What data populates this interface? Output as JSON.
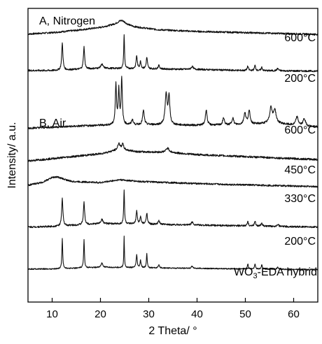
{
  "chart_data": {
    "type": "line",
    "xlabel": "2 Theta/ °",
    "ylabel": "Intensity/ a.u.",
    "xlim": [
      5,
      65
    ],
    "xticks": [
      10,
      20,
      30,
      40,
      50,
      60
    ],
    "yticks_shown": false,
    "panels": [
      {
        "label": "A, Nitrogen"
      },
      {
        "label": "B, Air"
      }
    ],
    "series": [
      {
        "name": "600°C",
        "panel": "A, Nitrogen",
        "offset": 9.35,
        "baseline": [
          [
            5,
            0.05
          ],
          [
            10,
            0.1
          ],
          [
            15,
            0.18
          ],
          [
            20,
            0.28
          ],
          [
            24,
            0.42
          ],
          [
            27,
            0.3
          ],
          [
            32,
            0.2
          ],
          [
            40,
            0.14
          ],
          [
            50,
            0.1
          ],
          [
            60,
            0.06
          ],
          [
            65,
            0.04
          ]
        ],
        "noise": 0.03,
        "peaks": [
          [
            24.5,
            0.12,
            1.8
          ]
        ]
      },
      {
        "name": "200°C",
        "panel": "A, Nitrogen",
        "offset": 8.0,
        "baseline": [
          [
            5,
            0.12
          ],
          [
            10,
            0.12
          ],
          [
            20,
            0.2
          ],
          [
            30,
            0.18
          ],
          [
            40,
            0.16
          ],
          [
            50,
            0.12
          ],
          [
            65,
            0.1
          ]
        ],
        "noise": 0.03,
        "peaks": [
          [
            12.1,
            0.95,
            0.3
          ],
          [
            16.6,
            0.78,
            0.3
          ],
          [
            20.3,
            0.15,
            0.5
          ],
          [
            24.9,
            1.2,
            0.2
          ],
          [
            27.5,
            0.45,
            0.3
          ],
          [
            28.3,
            0.25,
            0.3
          ],
          [
            29.6,
            0.4,
            0.3
          ],
          [
            32.1,
            0.12,
            0.4
          ],
          [
            39.0,
            0.1,
            0.5
          ],
          [
            50.5,
            0.15,
            0.3
          ],
          [
            52.0,
            0.18,
            0.3
          ],
          [
            53.4,
            0.12,
            0.3
          ],
          [
            56.7,
            0.08,
            0.4
          ]
        ]
      },
      {
        "name": "600°C",
        "panel": "B, Air",
        "offset": 6.0,
        "baseline": [
          [
            5,
            0.1
          ],
          [
            20,
            0.2
          ],
          [
            30,
            0.22
          ],
          [
            40,
            0.2
          ],
          [
            50,
            0.22
          ],
          [
            56,
            0.28
          ],
          [
            60,
            0.2
          ],
          [
            65,
            0.14
          ]
        ],
        "noise": 0.035,
        "peaks": [
          [
            23.2,
            1.4,
            0.3
          ],
          [
            23.8,
            1.2,
            0.3
          ],
          [
            24.4,
            1.6,
            0.3
          ],
          [
            26.6,
            0.18,
            0.4
          ],
          [
            28.9,
            0.5,
            0.4
          ],
          [
            33.6,
            1.05,
            0.5
          ],
          [
            34.2,
            0.95,
            0.4
          ],
          [
            41.9,
            0.55,
            0.4
          ],
          [
            45.5,
            0.25,
            0.4
          ],
          [
            47.4,
            0.25,
            0.4
          ],
          [
            49.9,
            0.4,
            0.5
          ],
          [
            50.8,
            0.45,
            0.5
          ],
          [
            55.3,
            0.55,
            0.6
          ],
          [
            56.1,
            0.45,
            0.6
          ],
          [
            60.7,
            0.3,
            0.6
          ],
          [
            62.2,
            0.25,
            0.6
          ]
        ]
      },
      {
        "name": "450°C",
        "panel": "B, Air",
        "offset": 4.95,
        "baseline": [
          [
            5,
            0.0
          ],
          [
            10,
            0.08
          ],
          [
            20,
            0.25
          ],
          [
            24,
            0.4
          ],
          [
            28,
            0.32
          ],
          [
            34,
            0.3
          ],
          [
            40,
            0.22
          ],
          [
            50,
            0.15
          ],
          [
            60,
            0.08
          ],
          [
            65,
            0.05
          ]
        ],
        "noise": 0.035,
        "peaks": [
          [
            23.8,
            0.22,
            0.5
          ],
          [
            24.6,
            0.2,
            0.5
          ],
          [
            33.9,
            0.15,
            0.8
          ]
        ]
      },
      {
        "name": "330°C",
        "panel": "B, Air",
        "offset": 4.05,
        "baseline": [
          [
            5,
            0.05
          ],
          [
            8,
            0.15
          ],
          [
            10,
            0.32
          ],
          [
            11,
            0.34
          ],
          [
            14,
            0.18
          ],
          [
            20,
            0.14
          ],
          [
            24,
            0.24
          ],
          [
            28,
            0.18
          ],
          [
            34,
            0.14
          ],
          [
            45,
            0.08
          ],
          [
            55,
            0.04
          ],
          [
            65,
            0.0
          ]
        ],
        "noise": 0.03,
        "peaks": []
      },
      {
        "name": "200°C",
        "panel": "B, Air",
        "offset": 2.55,
        "baseline": [
          [
            5,
            0.08
          ],
          [
            10,
            0.1
          ],
          [
            20,
            0.2
          ],
          [
            30,
            0.18
          ],
          [
            40,
            0.15
          ],
          [
            50,
            0.12
          ],
          [
            65,
            0.08
          ]
        ],
        "noise": 0.03,
        "peaks": [
          [
            12.1,
            0.95,
            0.3
          ],
          [
            16.6,
            0.78,
            0.3
          ],
          [
            20.3,
            0.15,
            0.5
          ],
          [
            24.9,
            1.2,
            0.2
          ],
          [
            27.5,
            0.45,
            0.3
          ],
          [
            28.3,
            0.25,
            0.3
          ],
          [
            29.6,
            0.4,
            0.3
          ],
          [
            32.1,
            0.12,
            0.4
          ],
          [
            39.0,
            0.1,
            0.5
          ],
          [
            50.5,
            0.15,
            0.3
          ],
          [
            52.0,
            0.18,
            0.3
          ],
          [
            53.4,
            0.12,
            0.3
          ],
          [
            56.7,
            0.08,
            0.4
          ]
        ]
      },
      {
        "name": "WO3-EDA hybrid",
        "panel": "B, Air",
        "offset": 1.1,
        "baseline": [
          [
            5,
            0.06
          ],
          [
            10,
            0.06
          ],
          [
            20,
            0.12
          ],
          [
            30,
            0.1
          ],
          [
            40,
            0.08
          ],
          [
            50,
            0.06
          ],
          [
            65,
            0.04
          ]
        ],
        "noise": 0.02,
        "peaks": [
          [
            12.1,
            1.05,
            0.2
          ],
          [
            16.6,
            1.0,
            0.2
          ],
          [
            20.3,
            0.15,
            0.4
          ],
          [
            24.9,
            1.1,
            0.15
          ],
          [
            27.5,
            0.45,
            0.25
          ],
          [
            28.3,
            0.25,
            0.25
          ],
          [
            29.6,
            0.5,
            0.2
          ],
          [
            32.1,
            0.1,
            0.3
          ],
          [
            39.0,
            0.08,
            0.4
          ],
          [
            50.5,
            0.18,
            0.25
          ],
          [
            52.0,
            0.18,
            0.25
          ],
          [
            53.4,
            0.15,
            0.25
          ],
          [
            56.7,
            0.08,
            0.3
          ]
        ]
      }
    ],
    "labels": {
      "panel_a": "A, Nitrogen",
      "panel_b": "B, Air",
      "n2_600": "600°C",
      "n2_200": "200°C",
      "air_600": "600°C",
      "air_450": "450°C",
      "air_330": "330°C",
      "air_200": "200°C",
      "hybrid_prefix": "WO",
      "hybrid_sub": "3",
      "hybrid_suffix": "-EDA hybrid"
    }
  }
}
